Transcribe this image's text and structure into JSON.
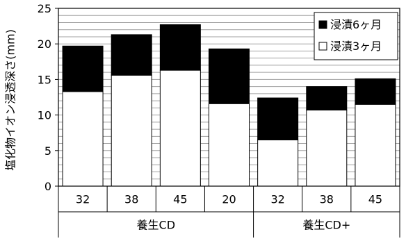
{
  "chart_data": {
    "type": "bar",
    "stacked": true,
    "categories": [
      "32",
      "38",
      "45",
      "20",
      "32",
      "38",
      "45"
    ],
    "groups": [
      {
        "label": "養生CD",
        "categories": [
          "32",
          "38",
          "45",
          "20"
        ]
      },
      {
        "label": "養生CD+",
        "categories": [
          "32",
          "38",
          "45"
        ]
      }
    ],
    "series": [
      {
        "name": "浸漬3ヶ月",
        "color": "#ffffff",
        "values": [
          13.3,
          15.6,
          16.3,
          11.6,
          6.5,
          10.7,
          11.5
        ]
      },
      {
        "name": "浸漬6ヶ月",
        "color": "#000000",
        "values": [
          6.4,
          5.7,
          6.4,
          7.7,
          5.9,
          3.3,
          3.6
        ]
      }
    ],
    "totals": [
      19.7,
      21.3,
      22.7,
      19.3,
      12.4,
      14.0,
      15.1
    ],
    "ylabel": "塩化物イオン浸透深さ(mm)",
    "ylim": [
      0,
      25
    ],
    "yticks": [
      "0",
      "5",
      "10",
      "15",
      "20",
      "25"
    ],
    "grid": "horizontal every 1",
    "legend": {
      "placement": "top-right",
      "entries": [
        {
          "label": "浸漬6ヶ月",
          "marker": "■"
        },
        {
          "label": "浸漬3ヶ月",
          "marker": "□"
        }
      ]
    }
  }
}
